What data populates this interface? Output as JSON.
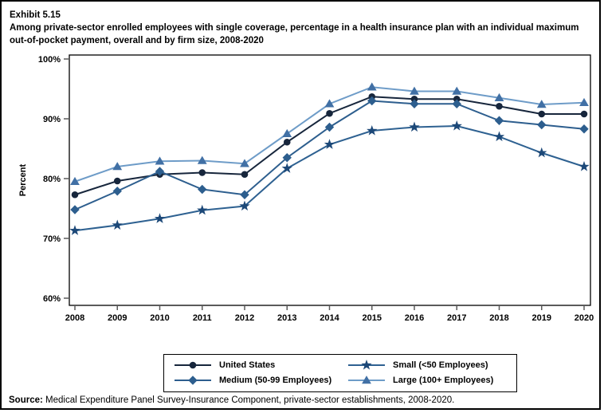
{
  "header": {
    "exhibit_label": "Exhibit 5.15",
    "title": "Among private-sector enrolled employees with single coverage, percentage in a health insurance plan with an individual maximum out-of-pocket payment, overall and by firm size, 2008-2020"
  },
  "source": {
    "label": "Source:",
    "text": " Medical Expenditure Panel Survey-Insurance Component, private-sector establishments, 2008-2020."
  },
  "chart_data": {
    "type": "line",
    "title": "",
    "xlabel": "",
    "ylabel": "Percent",
    "ylim": [
      58.8,
      100.8
    ],
    "yticks": [
      100,
      90,
      80,
      70,
      60
    ],
    "ytick_labels": [
      "100%",
      "90%",
      "80%",
      "70%",
      "60%"
    ],
    "x": [
      2008,
      2009,
      2010,
      2011,
      2012,
      2013,
      2014,
      2015,
      2016,
      2017,
      2018,
      2019,
      2020
    ],
    "xtick_labels": [
      "2008",
      "2009",
      "2010",
      "2011",
      "2012",
      "2013",
      "2014",
      "2015",
      "2016",
      "2017",
      "2018",
      "2019",
      "2020"
    ],
    "grid": false,
    "legend_position": "bottom",
    "series": [
      {
        "name": "United States",
        "marker": "circle",
        "marker_color": "#17263C",
        "line_color": "#17263C",
        "values": [
          77.3,
          79.6,
          80.7,
          81.0,
          80.7,
          86.1,
          90.9,
          93.7,
          93.3,
          93.3,
          92.1,
          90.8,
          90.8
        ]
      },
      {
        "name": "Medium (50-99 Employees)",
        "marker": "diamond",
        "marker_color": "#2D5E8E",
        "line_color": "#2D5E8E",
        "values": [
          74.8,
          77.9,
          81.2,
          78.2,
          77.3,
          83.5,
          88.6,
          93.0,
          92.5,
          92.5,
          89.7,
          89.0,
          88.3
        ]
      },
      {
        "name": "Small (<50 Employees)",
        "marker": "star",
        "marker_color": "#1C4878",
        "line_color": "#2E6191",
        "values": [
          71.3,
          72.2,
          73.3,
          74.7,
          75.4,
          81.7,
          85.7,
          88.0,
          88.6,
          88.8,
          87.0,
          84.3,
          82.0
        ]
      },
      {
        "name": "Large (100+ Employees)",
        "marker": "triangle",
        "marker_color": "#4170A5",
        "line_color": "#6E9CC8",
        "values": [
          79.5,
          82.0,
          82.9,
          83.0,
          82.5,
          87.5,
          92.5,
          95.3,
          94.6,
          94.6,
          93.5,
          92.4,
          92.7
        ]
      }
    ]
  }
}
